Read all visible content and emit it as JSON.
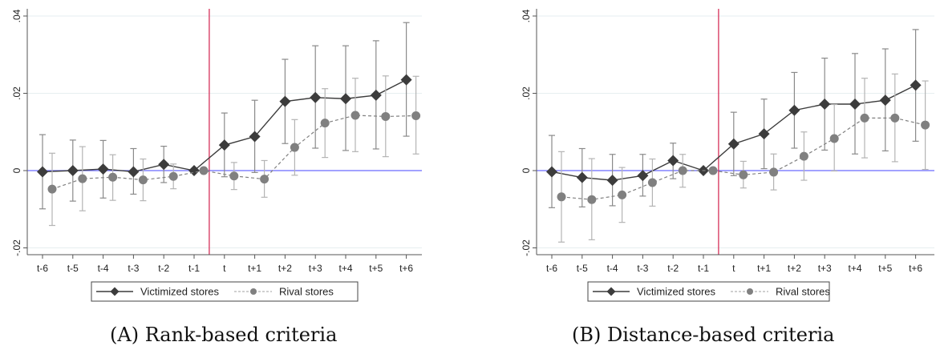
{
  "chart_data": [
    {
      "type": "line",
      "caption": "(A) Rank-based criteria",
      "categories": [
        "t-6",
        "t-5",
        "t-4",
        "t-3",
        "t-2",
        "t-1",
        "t",
        "t+1",
        "t+2",
        "t+3",
        "t+4",
        "t+5",
        "t+6"
      ],
      "ylim": [
        -0.02,
        0.04
      ],
      "yticks": [
        -0.02,
        0,
        0.02,
        0.04
      ],
      "ytick_labels": [
        "-.02",
        "0",
        ".02",
        ".04"
      ],
      "xlabel": "",
      "ylabel": "",
      "grid": true,
      "reference_lines": {
        "horizontal_at": 0,
        "vertical_between": [
          "t-1",
          "t"
        ]
      },
      "legend": {
        "position": "bottom",
        "entries": [
          "Victimized stores",
          "Rival stores"
        ]
      },
      "series": [
        {
          "name": "Victimized stores",
          "marker": "diamond",
          "style": "solid",
          "values": [
            -0.0003,
            0.0,
            0.0004,
            -0.0003,
            0.0016,
            0.0,
            0.0066,
            0.0088,
            0.0179,
            0.0189,
            0.0186,
            0.0195,
            0.0235
          ],
          "ci_low": [
            -0.0099,
            -0.0079,
            -0.0071,
            -0.0061,
            -0.0031,
            null,
            -0.0016,
            -0.0005,
            0.007,
            0.0058,
            0.0052,
            0.0056,
            0.0089
          ],
          "ci_high": [
            0.0093,
            0.0079,
            0.0078,
            0.0057,
            0.0063,
            null,
            0.0149,
            0.0182,
            0.0288,
            0.0323,
            0.0323,
            0.0336,
            0.0383
          ]
        },
        {
          "name": "Rival stores",
          "marker": "circle",
          "style": "dashed",
          "values": [
            -0.0048,
            -0.0021,
            -0.0017,
            -0.0024,
            -0.0015,
            0.0,
            -0.0014,
            -0.0022,
            0.006,
            0.0123,
            0.0143,
            0.014,
            0.0142
          ],
          "ci_low": [
            -0.0142,
            -0.0104,
            -0.0077,
            -0.0078,
            -0.0047,
            null,
            -0.0049,
            -0.0069,
            -0.0012,
            0.0034,
            0.0049,
            0.0036,
            0.0043
          ],
          "ci_high": [
            0.0045,
            0.0062,
            0.0041,
            0.003,
            0.0017,
            null,
            0.0021,
            0.0026,
            0.0132,
            0.0212,
            0.0239,
            0.0245,
            0.0244
          ]
        }
      ]
    },
    {
      "type": "line",
      "caption": "(B) Distance-based criteria",
      "categories": [
        "t-6",
        "t-5",
        "t-4",
        "t-3",
        "t-2",
        "t-1",
        "t",
        "t+1",
        "t+2",
        "t+3",
        "t+4",
        "t+5",
        "t+6"
      ],
      "ylim": [
        -0.02,
        0.04
      ],
      "yticks": [
        -0.02,
        0,
        0.02,
        0.04
      ],
      "ytick_labels": [
        "-.02",
        "0",
        ".02",
        ".04"
      ],
      "xlabel": "",
      "ylabel": "",
      "grid": true,
      "reference_lines": {
        "horizontal_at": 0,
        "vertical_between": [
          "t-1",
          "t"
        ]
      },
      "legend": {
        "position": "bottom",
        "entries": [
          "Victimized stores",
          "Rival stores"
        ]
      },
      "series": [
        {
          "name": "Victimized stores",
          "marker": "diamond",
          "style": "solid",
          "values": [
            -0.0003,
            -0.0018,
            -0.0025,
            -0.0013,
            0.0026,
            0.0,
            0.0069,
            0.0095,
            0.0156,
            0.0172,
            0.0172,
            0.0182,
            0.0221
          ],
          "ci_low": [
            -0.0096,
            -0.0094,
            -0.0091,
            -0.0066,
            -0.0021,
            null,
            -0.0013,
            0.0005,
            0.0058,
            0.0053,
            0.0043,
            0.0051,
            0.0076
          ],
          "ci_high": [
            0.0091,
            0.0057,
            0.0042,
            0.0042,
            0.0071,
            null,
            0.0151,
            0.0185,
            0.0254,
            0.0291,
            0.0303,
            0.0315,
            0.0365
          ]
        },
        {
          "name": "Rival stores",
          "marker": "circle",
          "style": "dashed",
          "values": [
            -0.0068,
            -0.0075,
            -0.0063,
            -0.0031,
            0.0,
            0.0,
            -0.0011,
            -0.0004,
            0.0037,
            0.0083,
            0.0136,
            0.0136,
            0.0118
          ],
          "ci_low": [
            -0.0185,
            -0.0179,
            -0.0134,
            -0.0092,
            -0.0043,
            null,
            -0.0045,
            -0.005,
            -0.0025,
            -0.0001,
            0.0033,
            0.0023,
            0.0003
          ],
          "ci_high": [
            0.0049,
            0.0031,
            0.0008,
            0.003,
            0.0042,
            null,
            0.0024,
            0.0043,
            0.01,
            0.0171,
            0.0239,
            0.025,
            0.0232
          ]
        }
      ]
    }
  ],
  "colors": {
    "victimized": "#3c3c3c",
    "rival": "#808080",
    "rival_ci": "#b4b4b4",
    "victimized_ci": "#8a8a8a",
    "zero_line": "#6b6bff",
    "event_line": "#d6305a",
    "grid": "#e6eef0",
    "axis": "#555555"
  }
}
